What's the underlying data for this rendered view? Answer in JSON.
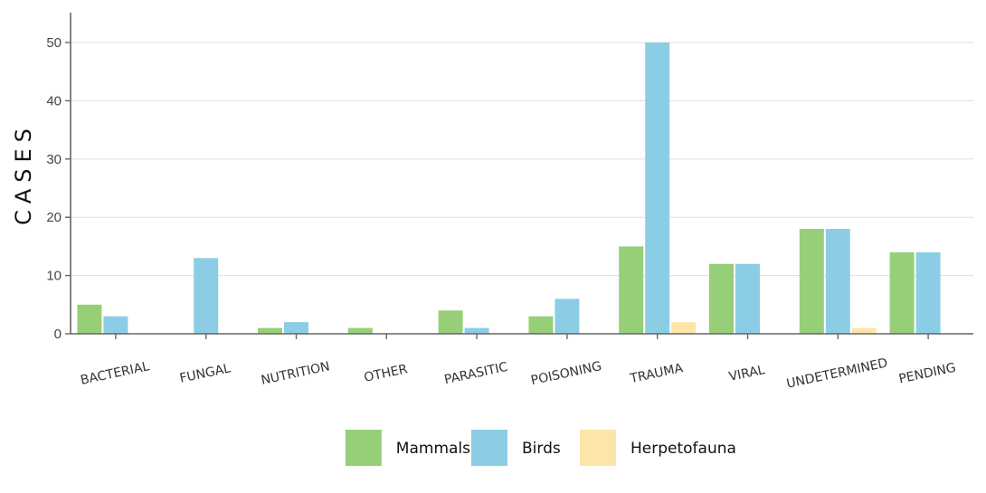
{
  "chart_data": {
    "type": "bar",
    "ylabel": "CASES",
    "xlabel": "",
    "ylim": [
      0,
      55
    ],
    "yticks": [
      0,
      10,
      20,
      30,
      40,
      50
    ],
    "grid": true,
    "legend_position": "bottom",
    "categories": [
      "BACTERIAL",
      "FUNGAL",
      "NUTRITION",
      "OTHER",
      "PARASITIC",
      "POISONING",
      "TRAUMA",
      "VIRAL",
      "UNDETERMINED",
      "PENDING"
    ],
    "series": [
      {
        "name": "Mammals",
        "color": "#96cf78",
        "values": [
          5,
          0,
          1,
          1,
          4,
          3,
          15,
          12,
          18,
          14
        ]
      },
      {
        "name": "Birds",
        "color": "#8ccde6",
        "values": [
          3,
          13,
          2,
          0,
          1,
          6,
          50,
          12,
          18,
          14
        ]
      },
      {
        "name": "Herpetofauna",
        "color": "#fde5a8",
        "values": [
          0,
          0,
          0,
          0,
          0,
          0,
          2,
          0,
          1,
          0
        ]
      }
    ]
  }
}
